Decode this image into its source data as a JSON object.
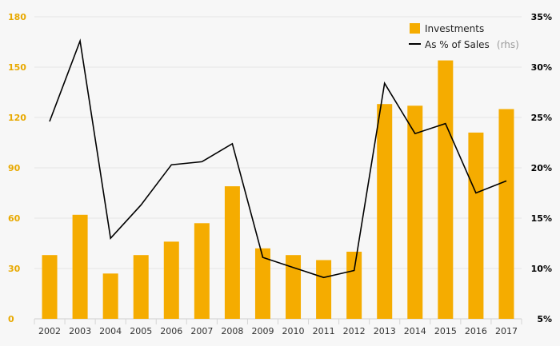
{
  "chart_data": {
    "type": "bar",
    "categories": [
      "2002",
      "2003",
      "2004",
      "2005",
      "2006",
      "2007",
      "2008",
      "2009",
      "2010",
      "2011",
      "2012",
      "2013",
      "2014",
      "2015",
      "2016",
      "2017"
    ],
    "series": [
      {
        "name": "Investments",
        "type": "bar",
        "axis": "left",
        "color": "#f5ac00",
        "values": [
          38,
          62,
          27,
          38,
          46,
          57,
          79,
          42,
          38,
          35,
          40,
          128,
          127,
          154,
          111,
          125
        ]
      },
      {
        "name": "As % of Sales",
        "legend_suffix": "(rhs)",
        "type": "line",
        "axis": "right",
        "color": "#000000",
        "values": [
          24.6,
          32.6,
          13.0,
          16.3,
          20.3,
          20.6,
          22.4,
          11.1,
          10.1,
          9.1,
          9.8,
          28.4,
          23.4,
          24.4,
          17.5,
          18.7
        ]
      }
    ],
    "y_left": {
      "min": 0,
      "max": 180,
      "ticks": [
        "0",
        "30",
        "60",
        "90",
        "120",
        "150",
        "180"
      ],
      "color": "#e8a900"
    },
    "y_right": {
      "min": 5,
      "max": 35,
      "ticks": [
        "5%",
        "10%",
        "15%",
        "20%",
        "25%",
        "30%",
        "35%"
      ],
      "color": "#000000"
    },
    "grid": true,
    "legend_position": "top-right"
  }
}
